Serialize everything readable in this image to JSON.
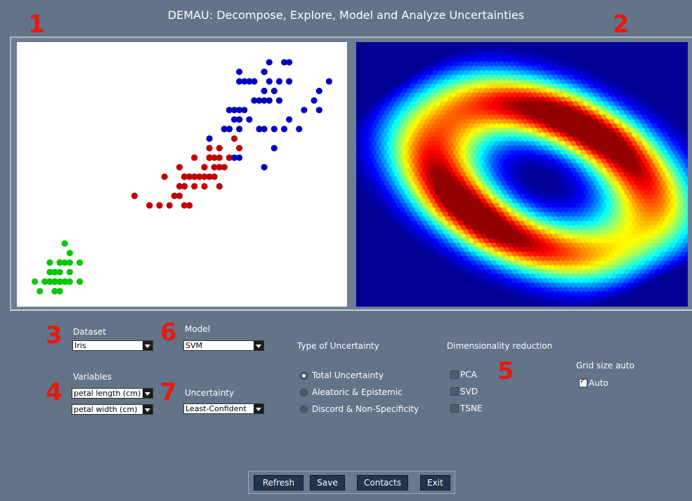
{
  "app": {
    "title": "DEMAU: Decompose, Explore, Model and Analyze Uncertainties"
  },
  "badges": {
    "b1": "1",
    "b2": "2",
    "b3": "3",
    "b4": "4",
    "b5": "5",
    "b6": "6",
    "b7": "7"
  },
  "dataset": {
    "label": "Dataset",
    "value": "Iris"
  },
  "model": {
    "label": "Model",
    "value": "SVM"
  },
  "variables": {
    "label": "Variables",
    "x_value": "petal length (cm)",
    "y_value": "petal width (cm)"
  },
  "uncertainty": {
    "label": "Uncertainty",
    "value": "Least-Confident"
  },
  "type_of_uncertainty": {
    "label": "Type of Uncertainty",
    "options": [
      "Total Uncertainty",
      "Aleatoric & Epistemic",
      "Discord  & Non-Specificity"
    ],
    "selected": 0
  },
  "dim_reduction": {
    "label": "Dimensionality reduction",
    "options": [
      "PCA",
      "SVD",
      "TSNE"
    ]
  },
  "grid_size": {
    "label": "Grid size auto",
    "auto_label": "Auto",
    "auto_checked": true
  },
  "buttons": {
    "refresh": "Refresh",
    "save": "Save",
    "contacts": "Contacts",
    "exit": "Exit"
  },
  "colors": {
    "class_0": "#00c800",
    "class_1": "#c00000",
    "class_2": "#0000c0",
    "background": "#637388"
  },
  "chart_data": {
    "type": "scatter",
    "series": [
      {
        "class": 0,
        "color": "#00c800",
        "points": [
          [
            1.4,
            0.2
          ],
          [
            1.4,
            0.2
          ],
          [
            1.3,
            0.2
          ],
          [
            1.5,
            0.2
          ],
          [
            1.4,
            0.2
          ],
          [
            1.7,
            0.4
          ],
          [
            1.4,
            0.3
          ],
          [
            1.5,
            0.2
          ],
          [
            1.4,
            0.2
          ],
          [
            1.5,
            0.1
          ],
          [
            1.5,
            0.2
          ],
          [
            1.6,
            0.2
          ],
          [
            1.4,
            0.1
          ],
          [
            1.1,
            0.1
          ],
          [
            1.2,
            0.2
          ],
          [
            1.5,
            0.4
          ],
          [
            1.3,
            0.4
          ],
          [
            1.4,
            0.3
          ],
          [
            1.7,
            0.3
          ],
          [
            1.5,
            0.3
          ],
          [
            1.7,
            0.2
          ],
          [
            1.5,
            0.4
          ],
          [
            1.0,
            0.2
          ],
          [
            1.7,
            0.5
          ],
          [
            1.9,
            0.2
          ],
          [
            1.6,
            0.2
          ],
          [
            1.6,
            0.4
          ],
          [
            1.5,
            0.2
          ],
          [
            1.4,
            0.2
          ],
          [
            1.6,
            0.2
          ],
          [
            1.6,
            0.2
          ],
          [
            1.5,
            0.4
          ],
          [
            1.5,
            0.1
          ],
          [
            1.4,
            0.2
          ],
          [
            1.5,
            0.2
          ],
          [
            1.2,
            0.2
          ],
          [
            1.3,
            0.2
          ],
          [
            1.4,
            0.1
          ],
          [
            1.3,
            0.2
          ],
          [
            1.5,
            0.2
          ],
          [
            1.3,
            0.3
          ],
          [
            1.3,
            0.3
          ],
          [
            1.3,
            0.2
          ],
          [
            1.6,
            0.6
          ],
          [
            1.9,
            0.4
          ],
          [
            1.4,
            0.3
          ],
          [
            1.6,
            0.2
          ],
          [
            1.4,
            0.2
          ],
          [
            1.5,
            0.2
          ],
          [
            1.4,
            0.2
          ]
        ]
      },
      {
        "class": 1,
        "color": "#c00000",
        "points": [
          [
            4.7,
            1.4
          ],
          [
            4.5,
            1.5
          ],
          [
            4.9,
            1.5
          ],
          [
            4.0,
            1.3
          ],
          [
            4.6,
            1.5
          ],
          [
            4.5,
            1.3
          ],
          [
            4.7,
            1.6
          ],
          [
            3.3,
            1.0
          ],
          [
            4.6,
            1.3
          ],
          [
            3.9,
            1.4
          ],
          [
            3.5,
            1.0
          ],
          [
            4.2,
            1.5
          ],
          [
            4.0,
            1.0
          ],
          [
            4.7,
            1.4
          ],
          [
            3.6,
            1.3
          ],
          [
            4.4,
            1.4
          ],
          [
            4.5,
            1.5
          ],
          [
            4.1,
            1.0
          ],
          [
            4.5,
            1.5
          ],
          [
            3.9,
            1.1
          ],
          [
            4.8,
            1.8
          ],
          [
            4.0,
            1.3
          ],
          [
            4.9,
            1.5
          ],
          [
            4.7,
            1.2
          ],
          [
            4.3,
            1.3
          ],
          [
            4.4,
            1.4
          ],
          [
            4.8,
            1.4
          ],
          [
            5.0,
            1.7
          ],
          [
            4.5,
            1.5
          ],
          [
            3.5,
            1.0
          ],
          [
            3.8,
            1.1
          ],
          [
            3.7,
            1.0
          ],
          [
            3.9,
            1.2
          ],
          [
            5.1,
            1.6
          ],
          [
            4.5,
            1.5
          ],
          [
            4.5,
            1.6
          ],
          [
            4.7,
            1.5
          ],
          [
            4.4,
            1.3
          ],
          [
            4.1,
            1.3
          ],
          [
            4.0,
            1.3
          ],
          [
            4.4,
            1.2
          ],
          [
            4.6,
            1.4
          ],
          [
            4.0,
            1.2
          ],
          [
            3.3,
            1.0
          ],
          [
            4.2,
            1.3
          ],
          [
            4.2,
            1.2
          ],
          [
            4.2,
            1.3
          ],
          [
            4.3,
            1.3
          ],
          [
            3.0,
            1.1
          ],
          [
            4.1,
            1.3
          ]
        ]
      },
      {
        "class": 2,
        "color": "#0000c0",
        "points": [
          [
            6.0,
            2.5
          ],
          [
            5.1,
            1.9
          ],
          [
            5.9,
            2.1
          ],
          [
            5.6,
            1.8
          ],
          [
            5.8,
            2.2
          ],
          [
            6.6,
            2.1
          ],
          [
            4.5,
            1.7
          ],
          [
            6.3,
            1.8
          ],
          [
            5.8,
            1.8
          ],
          [
            6.1,
            2.5
          ],
          [
            5.1,
            2.0
          ],
          [
            5.3,
            1.9
          ],
          [
            5.5,
            2.1
          ],
          [
            5.0,
            2.0
          ],
          [
            5.1,
            2.4
          ],
          [
            5.3,
            2.3
          ],
          [
            5.5,
            1.8
          ],
          [
            6.7,
            2.2
          ],
          [
            6.9,
            2.3
          ],
          [
            5.0,
            1.5
          ],
          [
            5.7,
            2.3
          ],
          [
            4.9,
            2.0
          ],
          [
            6.7,
            2.0
          ],
          [
            4.9,
            1.8
          ],
          [
            5.7,
            2.1
          ],
          [
            6.0,
            1.8
          ],
          [
            4.8,
            1.8
          ],
          [
            4.9,
            1.8
          ],
          [
            5.6,
            2.1
          ],
          [
            5.8,
            1.6
          ],
          [
            6.1,
            1.9
          ],
          [
            6.4,
            2.0
          ],
          [
            5.6,
            2.2
          ],
          [
            5.1,
            1.5
          ],
          [
            5.6,
            1.4
          ],
          [
            6.1,
            2.3
          ],
          [
            5.6,
            2.4
          ],
          [
            5.5,
            1.8
          ],
          [
            4.8,
            1.8
          ],
          [
            5.4,
            2.1
          ],
          [
            5.6,
            2.4
          ],
          [
            5.1,
            2.3
          ],
          [
            5.1,
            1.9
          ],
          [
            5.9,
            2.3
          ],
          [
            5.7,
            2.5
          ],
          [
            5.2,
            2.3
          ],
          [
            5.0,
            1.9
          ],
          [
            5.2,
            2.0
          ],
          [
            5.4,
            2.3
          ],
          [
            5.1,
            1.8
          ]
        ]
      }
    ],
    "xlim": [
      0.95,
      6.95
    ],
    "ylim": [
      0.1,
      2.55
    ]
  }
}
